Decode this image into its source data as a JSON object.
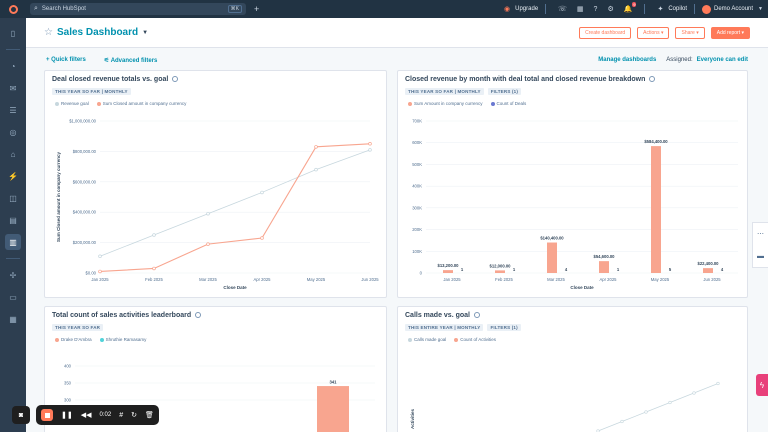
{
  "topbar": {
    "search_placeholder": "Search HubSpot",
    "search_shortcut": "⌘K",
    "upgrade_label": "Upgrade",
    "copilot_label": "Copilot",
    "account_label": "Demo Account",
    "notification_count": "9"
  },
  "header": {
    "title": "Sales Dashboard",
    "create_dashboard": "Create dashboard",
    "actions": "Actions",
    "share": "Share",
    "add_report": "Add report"
  },
  "filters": {
    "quick_filters": "Quick filters",
    "advanced_filters": "Advanced filters",
    "manage_dashboards": "Manage dashboards",
    "assigned_label": "Assigned:",
    "assigned_value": "Everyone can edit"
  },
  "cards": {
    "revenue_goal": {
      "title": "Deal closed revenue totals vs. goal",
      "tags": [
        "THIS YEAR SO FAR | MONTHLY"
      ],
      "legend": [
        "Revenue goal",
        "Sum Closed amount in company currency"
      ]
    },
    "revenue_by_month": {
      "title": "Closed revenue by month with deal total and closed revenue breakdown",
      "tags": [
        "THIS YEAR SO FAR | MONTHLY",
        "FILTERS (1)"
      ],
      "legend": [
        "Sum Amount in company currency",
        "Count of Deals"
      ]
    },
    "activities": {
      "title": "Total count of sales activities leaderboard",
      "tags": [
        "THIS YEAR SO FAR"
      ],
      "legend": [
        "Drake D'Ambra",
        "Shruthie Ramasamy"
      ]
    },
    "calls_goal": {
      "title": "Calls made vs. goal",
      "tags": [
        "THIS ENTIRE YEAR | MONTHLY",
        "FILTERS (1)"
      ],
      "legend": [
        "Calls made goal",
        "Count of Activities"
      ]
    }
  },
  "recorder": {
    "time": "0:02"
  },
  "colors": {
    "accent": "#ff7a59",
    "link": "#0091ae",
    "goal_line": "#c7d7de",
    "bar": "#f8a58f",
    "nav": "#2d3e50"
  },
  "chart_data": [
    {
      "type": "line",
      "title": "Deal closed revenue totals vs. goal",
      "xlabel": "Close Date",
      "ylabel": "Sum Closed amount in company currency",
      "categories": [
        "Jan 2025",
        "Feb 2025",
        "Mar 2025",
        "Apr 2025",
        "May 2025",
        "Jun 2025"
      ],
      "y_ticks": [
        "$0.00",
        "$200,000.00",
        "$400,000.00",
        "$600,000.00",
        "$800,000.00",
        "$1,000,000.00"
      ],
      "ylim": [
        0,
        1000000
      ],
      "series": [
        {
          "name": "Revenue goal",
          "values": [
            110000,
            250000,
            390000,
            530000,
            680000,
            810000
          ],
          "color": "#c7d7de"
        },
        {
          "name": "Sum Closed amount in company currency",
          "values": [
            10000,
            30000,
            190000,
            230000,
            830000,
            850000
          ],
          "color": "#f8a58f"
        }
      ]
    },
    {
      "type": "bar",
      "title": "Closed revenue by month with deal total and closed revenue breakdown",
      "xlabel": "Close Date",
      "categories": [
        "Jan 2025",
        "Feb 2025",
        "Mar 2025",
        "Apr 2025",
        "May 2025",
        "Jun 2025"
      ],
      "y_ticks": [
        "0",
        "100K",
        "200K",
        "300K",
        "400K",
        "500K",
        "600K",
        "700K"
      ],
      "ylim": [
        0,
        700000
      ],
      "series": [
        {
          "name": "Sum Amount in company currency",
          "values": [
            13200,
            12000,
            140400,
            54600,
            584400,
            22400
          ],
          "labels": [
            "$13,200.00",
            "$12,000.00",
            "$140,400.00",
            "$54,600.00",
            "$584,400.00",
            "$22,400.00"
          ],
          "color": "#f8a58f"
        },
        {
          "name": "Count of Deals",
          "values": [
            1,
            1,
            4,
            1,
            5,
            4
          ],
          "color": "#6a78d1"
        }
      ]
    },
    {
      "type": "bar",
      "title": "Total count of sales activities leaderboard",
      "y_ticks": [
        "300",
        "350",
        "400"
      ],
      "series": [
        {
          "name": "Drake D'Ambra",
          "values": [
            341
          ],
          "labels": [
            "341"
          ],
          "color": "#f8a58f"
        }
      ]
    },
    {
      "type": "line",
      "title": "Calls made vs. goal",
      "ylabel": "Activities",
      "series": [
        {
          "name": "Calls made goal",
          "values": [],
          "color": "#c7d7de"
        }
      ]
    }
  ]
}
